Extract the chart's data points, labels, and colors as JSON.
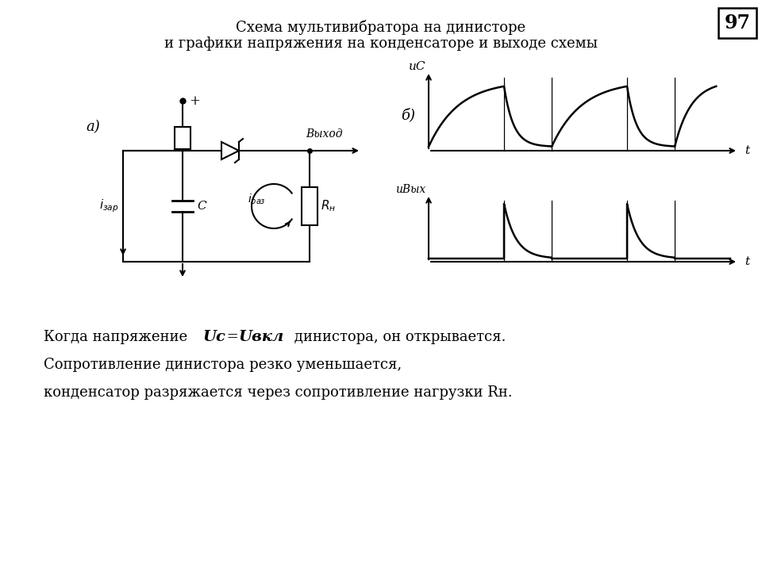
{
  "title_line1": "Схема мультивибратора на динисторе",
  "title_line2": "и графики напряжения на конденсаторе и выходе схемы",
  "page_number": "97",
  "label_a": "а)",
  "label_b": "б)",
  "label_izap": "iзар",
  "label_C": "C",
  "label_iraz": "iраз",
  "label_Rn": "Rн",
  "label_vyhod": "Выход",
  "label_uc": "uС",
  "label_uvyx": "uВых",
  "label_t": "t",
  "text_line1a": "Когда напряжение ",
  "text_uc": "Uc",
  "text_eq": " =",
  "text_uvkl": "Uвкл",
  "text_line1b": " динистора, он открывается.",
  "text_line2": "Сопротивление динистора резко уменьшается,",
  "text_line3": "конденсатор разряжается через сопротивление нагрузки Rн.",
  "bg_color": "#ffffff",
  "lw": 1.5
}
